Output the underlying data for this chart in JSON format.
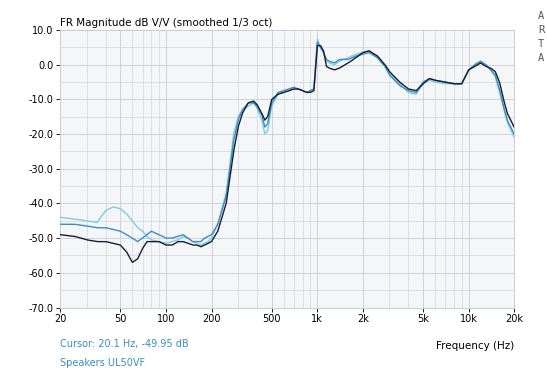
{
  "title": "FR Magnitude dB V/V (smoothed 1/3 oct)",
  "xlabel": "Frequency (Hz)",
  "watermark": "A\nR\nT\nA",
  "cursor_label": "Cursor: 20.1 Hz, -49.95 dB",
  "speaker_label": "Speakers UL50VF",
  "ylim": [
    -70,
    10
  ],
  "yticks": [
    -70,
    -60,
    -50,
    -40,
    -30,
    -20,
    -10,
    0,
    10
  ],
  "ytick_labels": [
    "-70.0",
    "-60.0",
    "-50.0",
    "-40.0",
    "-30.0",
    "-20.0",
    "-10.0",
    "0.0",
    "10.0"
  ],
  "xticks": [
    20,
    50,
    100,
    200,
    500,
    1000,
    2000,
    5000,
    10000,
    20000
  ],
  "xtick_labels": [
    "20",
    "50",
    "100",
    "200",
    "500",
    "1k",
    "2k",
    "5k",
    "10k",
    "20k"
  ],
  "bg_color": "#ffffff",
  "plot_bg_color": "#f5f6f8",
  "grid_color": "#c8cdd8",
  "curve1_color": "#1c1c2e",
  "curve2_color": "#3a8fc0",
  "curve3_color": "#7ccce8",
  "cursor_color": "#3a8fc0",
  "curve1_lw": 1.0,
  "curve2_lw": 1.0,
  "curve3_lw": 1.0
}
